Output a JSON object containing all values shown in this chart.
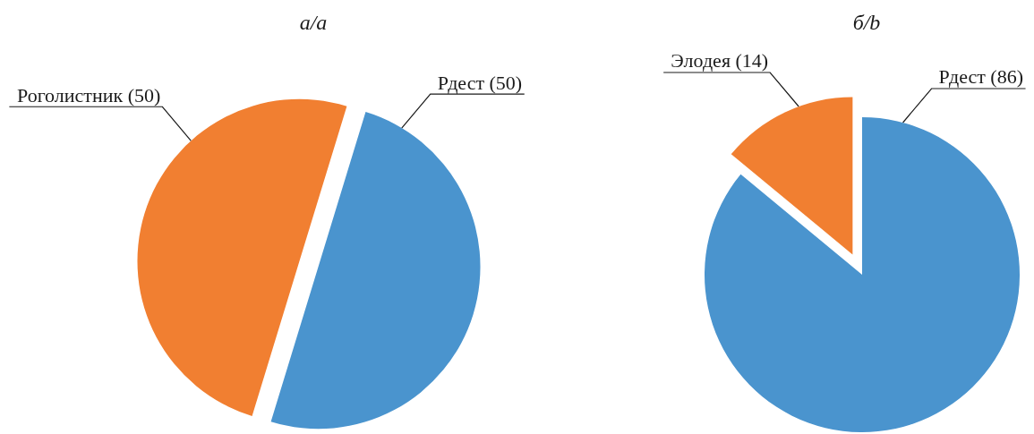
{
  "chart_data": [
    {
      "type": "pie",
      "title": "а/a",
      "categories": [
        "Рдест",
        "Роголистник"
      ],
      "values": [
        50,
        50
      ],
      "colors": [
        "#4a94ce",
        "#f17f31"
      ],
      "value_labels": [
        "(50)",
        "(50)"
      ]
    },
    {
      "type": "pie",
      "title": "б/b",
      "categories": [
        "Рдест",
        "Элодея"
      ],
      "values": [
        86,
        14
      ],
      "colors": [
        "#4a94ce",
        "#f17f31"
      ],
      "value_labels": [
        "(86)",
        "(14)"
      ]
    }
  ]
}
